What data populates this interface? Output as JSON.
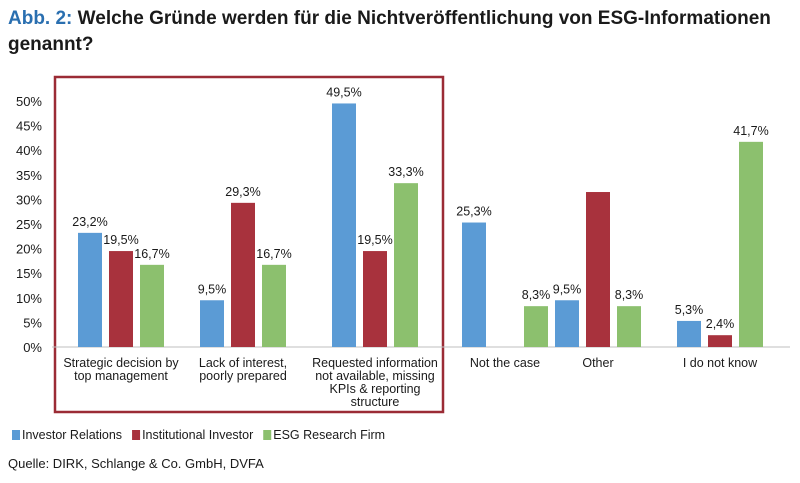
{
  "title": {
    "prefix": "Abb. 2:",
    "text": "Welche Gründe werden für die Nichtveröffentlichung von ESG-Informationen genannt?"
  },
  "chart_data": {
    "type": "bar",
    "categories": [
      [
        "Strategic decision by",
        "top management"
      ],
      [
        "Lack of interest,",
        "poorly prepared"
      ],
      [
        "Requested information",
        "not available, missing",
        "KPIs & reporting",
        "structure"
      ],
      [
        "Not the case"
      ],
      [
        "Other"
      ],
      [
        "I do not know"
      ]
    ],
    "series": [
      {
        "name": "Investor Relations",
        "color": "#5b9bd5",
        "values": [
          23.2,
          9.5,
          49.5,
          25.3,
          9.5,
          5.3
        ],
        "labels": [
          "23,2%",
          "9,5%",
          "49,5%",
          "25,3%",
          "9,5%",
          "5,3%"
        ]
      },
      {
        "name": "Institutional Investor",
        "color": "#a8323d",
        "values": [
          19.5,
          29.3,
          19.5,
          null,
          31.5,
          2.4
        ],
        "labels": [
          "19,5%",
          "29,3%",
          "19,5%",
          "",
          "",
          "2,4%"
        ]
      },
      {
        "name": "ESG Research Firm",
        "color": "#8cc06e",
        "values": [
          16.7,
          16.7,
          33.3,
          8.3,
          8.3,
          41.7
        ],
        "labels": [
          "16,7%",
          "16,7%",
          "33,3%",
          "8,3%",
          "8,3%",
          "41,7%"
        ]
      }
    ],
    "yticks": [
      "0%",
      "5%",
      "10%",
      "15%",
      "20%",
      "25%",
      "30%",
      "35%",
      "40%",
      "45%",
      "50%"
    ],
    "ylim": [
      0,
      50
    ],
    "grid": false,
    "legend_position": "bottom-left",
    "highlight": {
      "color": "#9b2b35",
      "categories": [
        0,
        1,
        2
      ]
    }
  },
  "source": "Quelle: DIRK, Schlange & Co. GmbH, DVFA"
}
